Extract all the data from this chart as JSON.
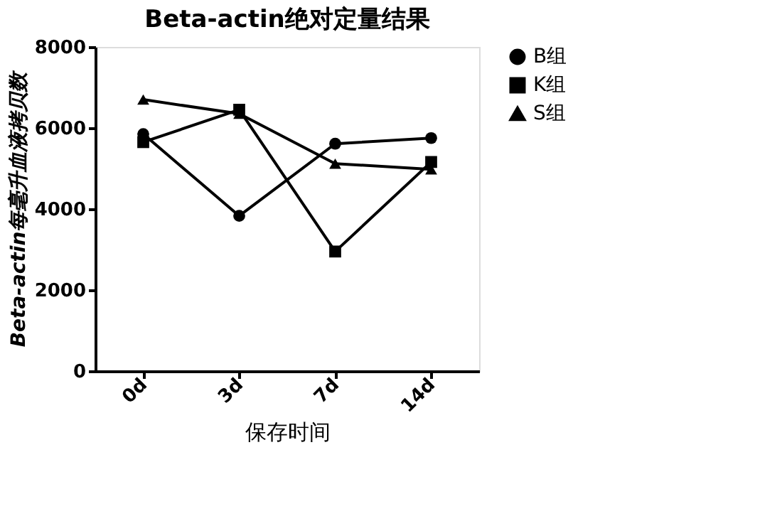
{
  "chart_data": {
    "type": "line",
    "title": "Beta-actin绝对定量结果",
    "xlabel": "保存时间",
    "ylabel": "Beta-actin每毫升血液拷贝数",
    "categories": [
      "0d",
      "3d",
      "7d",
      "14d"
    ],
    "series": [
      {
        "name": "B组",
        "color": "#000000",
        "marker": "circle",
        "values": [
          5850,
          3830,
          5610,
          5750
        ]
      },
      {
        "name": "K组",
        "color": "#000000",
        "marker": "square",
        "values": [
          5650,
          6450,
          2950,
          5160
        ]
      },
      {
        "name": "S组",
        "color": "#000000",
        "marker": "triangle",
        "values": [
          6700,
          6350,
          5120,
          4980
        ]
      }
    ],
    "ylim": [
      0,
      8000
    ],
    "yticks": [
      0,
      2000,
      4000,
      6000,
      8000
    ],
    "grid": false,
    "legend": "top right",
    "line_style": "solid"
  }
}
